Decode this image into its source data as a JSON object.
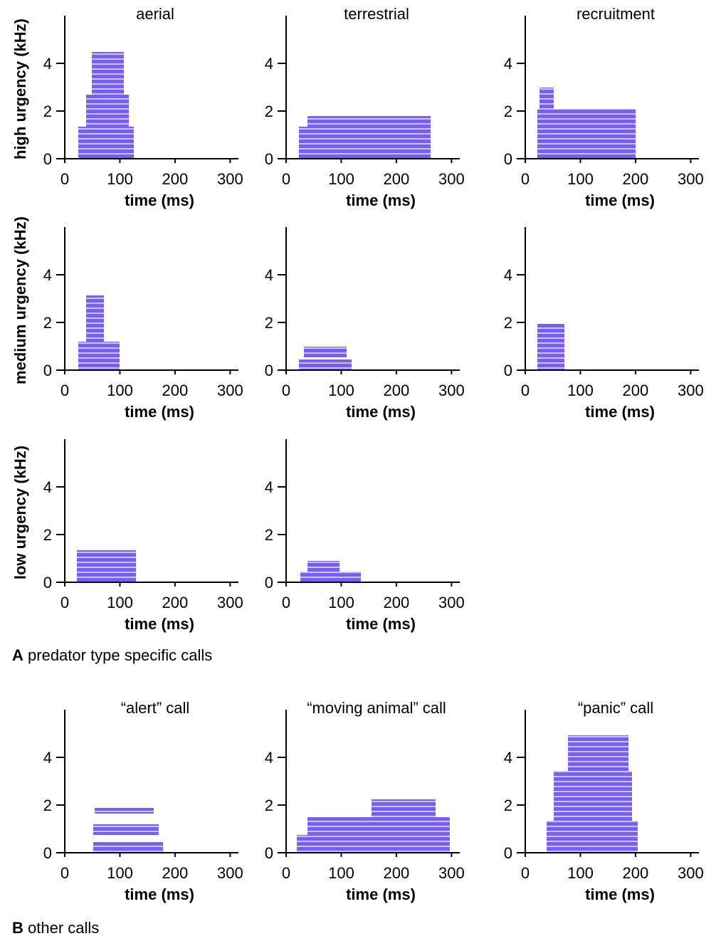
{
  "chart_data": [
    {
      "type": "spectrogram",
      "title": "aerial",
      "y_label": "high urgency (kHz)",
      "x_label": "time (ms)",
      "xlim": [
        0,
        315
      ],
      "ylim": [
        0,
        6
      ],
      "xticks": [
        0,
        100,
        200,
        300
      ],
      "yticks": [
        0,
        2,
        4
      ]
    },
    {
      "type": "spectrogram",
      "title": "terrestrial",
      "x_label": "time (ms)",
      "xlim": [
        0,
        315
      ],
      "ylim": [
        0,
        6
      ],
      "xticks": [
        0,
        100,
        200,
        300
      ],
      "yticks": [
        0,
        2,
        4
      ]
    },
    {
      "type": "spectrogram",
      "title": "recruitment",
      "x_label": "time (ms)",
      "xlim": [
        0,
        315
      ],
      "ylim": [
        0,
        6
      ],
      "xticks": [
        0,
        100,
        200,
        300
      ],
      "yticks": [
        0,
        2,
        4
      ]
    },
    {
      "type": "spectrogram",
      "y_label": "medium urgency (kHz)",
      "x_label": "time (ms)",
      "xlim": [
        0,
        315
      ],
      "ylim": [
        0,
        6
      ],
      "xticks": [
        0,
        100,
        200,
        300
      ],
      "yticks": [
        0,
        2,
        4
      ]
    },
    {
      "type": "spectrogram",
      "x_label": "time (ms)",
      "xlim": [
        0,
        315
      ],
      "ylim": [
        0,
        6
      ],
      "xticks": [
        0,
        100,
        200,
        300
      ],
      "yticks": [
        0,
        2,
        4
      ]
    },
    {
      "type": "spectrogram",
      "x_label": "time (ms)",
      "xlim": [
        0,
        315
      ],
      "ylim": [
        0,
        6
      ],
      "xticks": [
        0,
        100,
        200,
        300
      ],
      "yticks": [
        0,
        2,
        4
      ]
    },
    {
      "type": "spectrogram",
      "y_label": "low urgency (kHz)",
      "x_label": "time (ms)",
      "xlim": [
        0,
        315
      ],
      "ylim": [
        0,
        6
      ],
      "xticks": [
        0,
        100,
        200,
        300
      ],
      "yticks": [
        0,
        2,
        4
      ]
    },
    {
      "type": "spectrogram",
      "x_label": "time (ms)",
      "xlim": [
        0,
        315
      ],
      "ylim": [
        0,
        6
      ],
      "xticks": [
        0,
        100,
        200,
        300
      ],
      "yticks": [
        0,
        2,
        4
      ]
    },
    {
      "type": "spectrogram",
      "title": "“alert” call",
      "x_label": "time (ms)",
      "xlim": [
        0,
        315
      ],
      "ylim": [
        0,
        6
      ],
      "xticks": [
        0,
        100,
        200,
        300
      ],
      "yticks": [
        0,
        2,
        4
      ]
    },
    {
      "type": "spectrogram",
      "title": "“moving animal” call",
      "x_label": "time (ms)",
      "xlim": [
        0,
        315
      ],
      "ylim": [
        0,
        6
      ],
      "xticks": [
        0,
        100,
        200,
        300
      ],
      "yticks": [
        0,
        2,
        4
      ]
    },
    {
      "type": "spectrogram",
      "title": "“panic” call",
      "x_label": "time (ms)",
      "xlim": [
        0,
        315
      ],
      "ylim": [
        0,
        6
      ],
      "xticks": [
        0,
        100,
        200,
        300
      ],
      "yticks": [
        0,
        2,
        4
      ]
    }
  ],
  "sections": [
    {
      "letter": "A",
      "caption": "predator type specific calls"
    },
    {
      "letter": "B",
      "caption": "other calls"
    }
  ]
}
